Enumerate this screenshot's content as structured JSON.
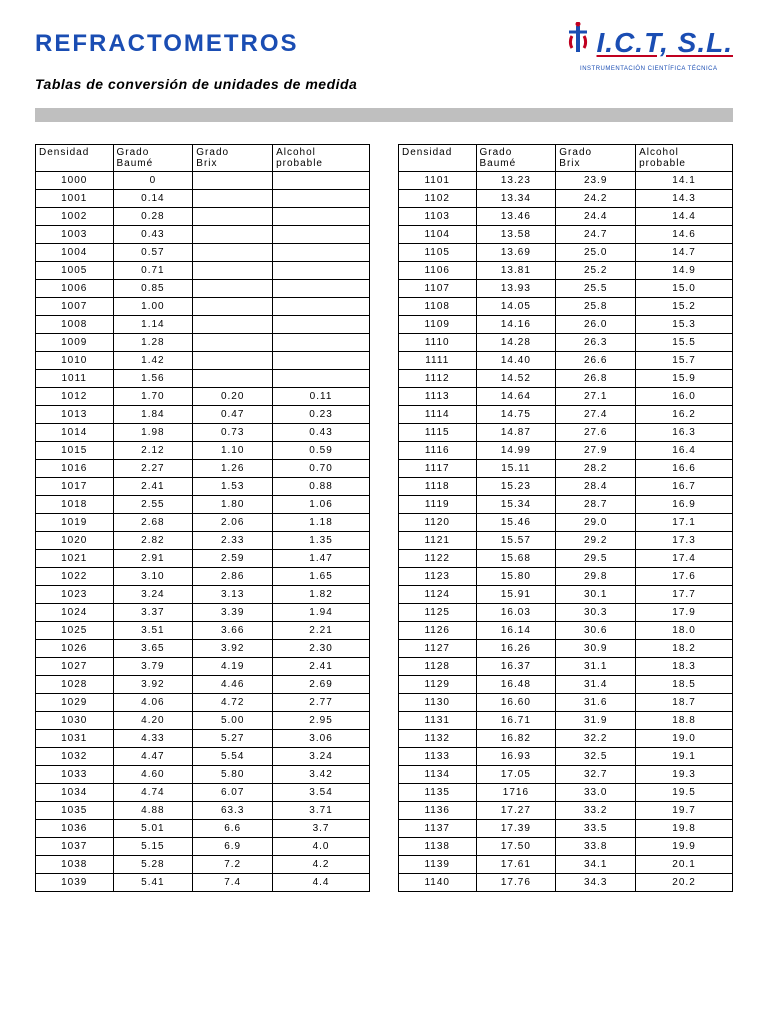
{
  "title": "REFRACTOMETROS",
  "subtitle": "Tablas de conversión de unidades de medida",
  "logo": {
    "text": "I.C.T, S.L.",
    "sub": "INSTRUMENTACIÓN CIENTÍFICA TÉCNICA"
  },
  "columns": [
    "Densidad",
    "Grado Baumé",
    "Grado Brix",
    "Alcohol probable"
  ],
  "left_rows": [
    [
      "1000",
      "0",
      "",
      ""
    ],
    [
      "1001",
      "0.14",
      "",
      ""
    ],
    [
      "1002",
      "0.28",
      "",
      ""
    ],
    [
      "1003",
      "0.43",
      "",
      ""
    ],
    [
      "1004",
      "0.57",
      "",
      ""
    ],
    [
      "1005",
      "0.71",
      "",
      ""
    ],
    [
      "1006",
      "0.85",
      "",
      ""
    ],
    [
      "1007",
      "1.00",
      "",
      ""
    ],
    [
      "1008",
      "1.14",
      "",
      ""
    ],
    [
      "1009",
      "1.28",
      "",
      ""
    ],
    [
      "1010",
      "1.42",
      "",
      ""
    ],
    [
      "1011",
      "1.56",
      "",
      ""
    ],
    [
      "1012",
      "1.70",
      "0.20",
      "0.11"
    ],
    [
      "1013",
      "1.84",
      "0.47",
      "0.23"
    ],
    [
      "1014",
      "1.98",
      "0.73",
      "0.43"
    ],
    [
      "1015",
      "2.12",
      "1.10",
      "0.59"
    ],
    [
      "1016",
      "2.27",
      "1.26",
      "0.70"
    ],
    [
      "1017",
      "2.41",
      "1.53",
      "0.88"
    ],
    [
      "1018",
      "2.55",
      "1.80",
      "1.06"
    ],
    [
      "1019",
      "2.68",
      "2.06",
      "1.18"
    ],
    [
      "1020",
      "2.82",
      "2.33",
      "1.35"
    ],
    [
      "1021",
      "2.91",
      "2.59",
      "1.47"
    ],
    [
      "1022",
      "3.10",
      "2.86",
      "1.65"
    ],
    [
      "1023",
      "3.24",
      "3.13",
      "1.82"
    ],
    [
      "1024",
      "3.37",
      "3.39",
      "1.94"
    ],
    [
      "1025",
      "3.51",
      "3.66",
      "2.21"
    ],
    [
      "1026",
      "3.65",
      "3.92",
      "2.30"
    ],
    [
      "1027",
      "3.79",
      "4.19",
      "2.41"
    ],
    [
      "1028",
      "3.92",
      "4.46",
      "2.69"
    ],
    [
      "1029",
      "4.06",
      "4.72",
      "2.77"
    ],
    [
      "1030",
      "4.20",
      "5.00",
      "2.95"
    ],
    [
      "1031",
      "4.33",
      "5.27",
      "3.06"
    ],
    [
      "1032",
      "4.47",
      "5.54",
      "3.24"
    ],
    [
      "1033",
      "4.60",
      "5.80",
      "3.42"
    ],
    [
      "1034",
      "4.74",
      "6.07",
      "3.54"
    ],
    [
      "1035",
      "4.88",
      "63.3",
      "3.71"
    ],
    [
      "1036",
      "5.01",
      "6.6",
      "3.7"
    ],
    [
      "1037",
      "5.15",
      "6.9",
      "4.0"
    ],
    [
      "1038",
      "5.28",
      "7.2",
      "4.2"
    ],
    [
      "1039",
      "5.41",
      "7.4",
      "4.4"
    ]
  ],
  "right_rows": [
    [
      "1101",
      "13.23",
      "23.9",
      "14.1"
    ],
    [
      "1102",
      "13.34",
      "24.2",
      "14.3"
    ],
    [
      "1103",
      "13.46",
      "24.4",
      "14.4"
    ],
    [
      "1104",
      "13.58",
      "24.7",
      "14.6"
    ],
    [
      "1105",
      "13.69",
      "25.0",
      "14.7"
    ],
    [
      "1106",
      "13.81",
      "25.2",
      "14.9"
    ],
    [
      "1107",
      "13.93",
      "25.5",
      "15.0"
    ],
    [
      "1108",
      "14.05",
      "25.8",
      "15.2"
    ],
    [
      "1109",
      "14.16",
      "26.0",
      "15.3"
    ],
    [
      "1110",
      "14.28",
      "26.3",
      "15.5"
    ],
    [
      "1111",
      "14.40",
      "26.6",
      "15.7"
    ],
    [
      "1112",
      "14.52",
      "26.8",
      "15.9"
    ],
    [
      "1113",
      "14.64",
      "27.1",
      "16.0"
    ],
    [
      "1114",
      "14.75",
      "27.4",
      "16.2"
    ],
    [
      "1115",
      "14.87",
      "27.6",
      "16.3"
    ],
    [
      "1116",
      "14.99",
      "27.9",
      "16.4"
    ],
    [
      "1117",
      "15.11",
      "28.2",
      "16.6"
    ],
    [
      "1118",
      "15.23",
      "28.4",
      "16.7"
    ],
    [
      "1119",
      "15.34",
      "28.7",
      "16.9"
    ],
    [
      "1120",
      "15.46",
      "29.0",
      "17.1"
    ],
    [
      "1121",
      "15.57",
      "29.2",
      "17.3"
    ],
    [
      "1122",
      "15.68",
      "29.5",
      "17.4"
    ],
    [
      "1123",
      "15.80",
      "29.8",
      "17.6"
    ],
    [
      "1124",
      "15.91",
      "30.1",
      "17.7"
    ],
    [
      "1125",
      "16.03",
      "30.3",
      "17.9"
    ],
    [
      "1126",
      "16.14",
      "30.6",
      "18.0"
    ],
    [
      "1127",
      "16.26",
      "30.9",
      "18.2"
    ],
    [
      "1128",
      "16.37",
      "31.1",
      "18.3"
    ],
    [
      "1129",
      "16.48",
      "31.4",
      "18.5"
    ],
    [
      "1130",
      "16.60",
      "31.6",
      "18.7"
    ],
    [
      "1131",
      "16.71",
      "31.9",
      "18.8"
    ],
    [
      "1132",
      "16.82",
      "32.2",
      "19.0"
    ],
    [
      "1133",
      "16.93",
      "32.5",
      "19.1"
    ],
    [
      "1134",
      "17.05",
      "32.7",
      "19.3"
    ],
    [
      "1135",
      "1716",
      "33.0",
      "19.5"
    ],
    [
      "1136",
      "17.27",
      "33.2",
      "19.7"
    ],
    [
      "1137",
      "17.39",
      "33.5",
      "19.8"
    ],
    [
      "1138",
      "17.50",
      "33.8",
      "19.9"
    ],
    [
      "1139",
      "17.61",
      "34.1",
      "20.1"
    ],
    [
      "1140",
      "17.76",
      "34.3",
      "20.2"
    ]
  ]
}
